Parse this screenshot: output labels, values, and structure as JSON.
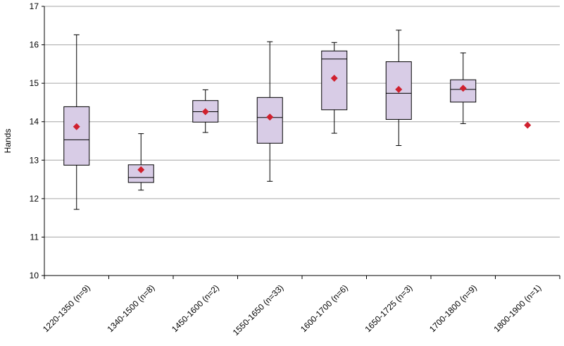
{
  "chart_data": {
    "type": "boxplot",
    "ylabel": "Hands",
    "ylim": [
      10,
      17
    ],
    "yticks": [
      "10",
      "11",
      "12",
      "13",
      "14",
      "15",
      "16",
      "17"
    ],
    "grid": true,
    "colors": {
      "box_fill": "#d8cce6",
      "box_stroke": "#000000",
      "mean_marker": "#d0202e",
      "grid": "#a6a6a6"
    },
    "categories": [
      "1220-1350 (n=9)",
      "1340-1500 (n=8)",
      "1450-1600 (n=2)",
      "1550-1650 (n=33)",
      "1600-1700 (n=6)",
      "1650-1725 (n=3)",
      "1700-1800 (n=9)",
      "1800-1900 (n=1)"
    ],
    "boxes": [
      {
        "min": 11.72,
        "q1": 12.87,
        "median": 13.53,
        "q3": 14.39,
        "max": 16.26,
        "mean": 13.87
      },
      {
        "min": 12.22,
        "q1": 12.42,
        "median": 12.55,
        "q3": 12.88,
        "max": 13.69,
        "mean": 12.75
      },
      {
        "min": 13.72,
        "q1": 13.99,
        "median": 14.26,
        "q3": 14.55,
        "max": 14.83,
        "mean": 14.26
      },
      {
        "min": 12.45,
        "q1": 13.44,
        "median": 14.11,
        "q3": 14.63,
        "max": 16.08,
        "mean": 14.12
      },
      {
        "min": 13.7,
        "q1": 14.31,
        "median": 15.63,
        "q3": 15.84,
        "max": 16.06,
        "mean": 15.13
      },
      {
        "min": 13.38,
        "q1": 14.06,
        "median": 14.74,
        "q3": 15.56,
        "max": 16.38,
        "mean": 14.84
      },
      {
        "min": 13.95,
        "q1": 14.51,
        "median": 14.84,
        "q3": 15.09,
        "max": 15.79,
        "mean": 14.87
      },
      {
        "min": null,
        "q1": null,
        "median": null,
        "q3": null,
        "max": null,
        "mean": 13.91
      }
    ]
  }
}
